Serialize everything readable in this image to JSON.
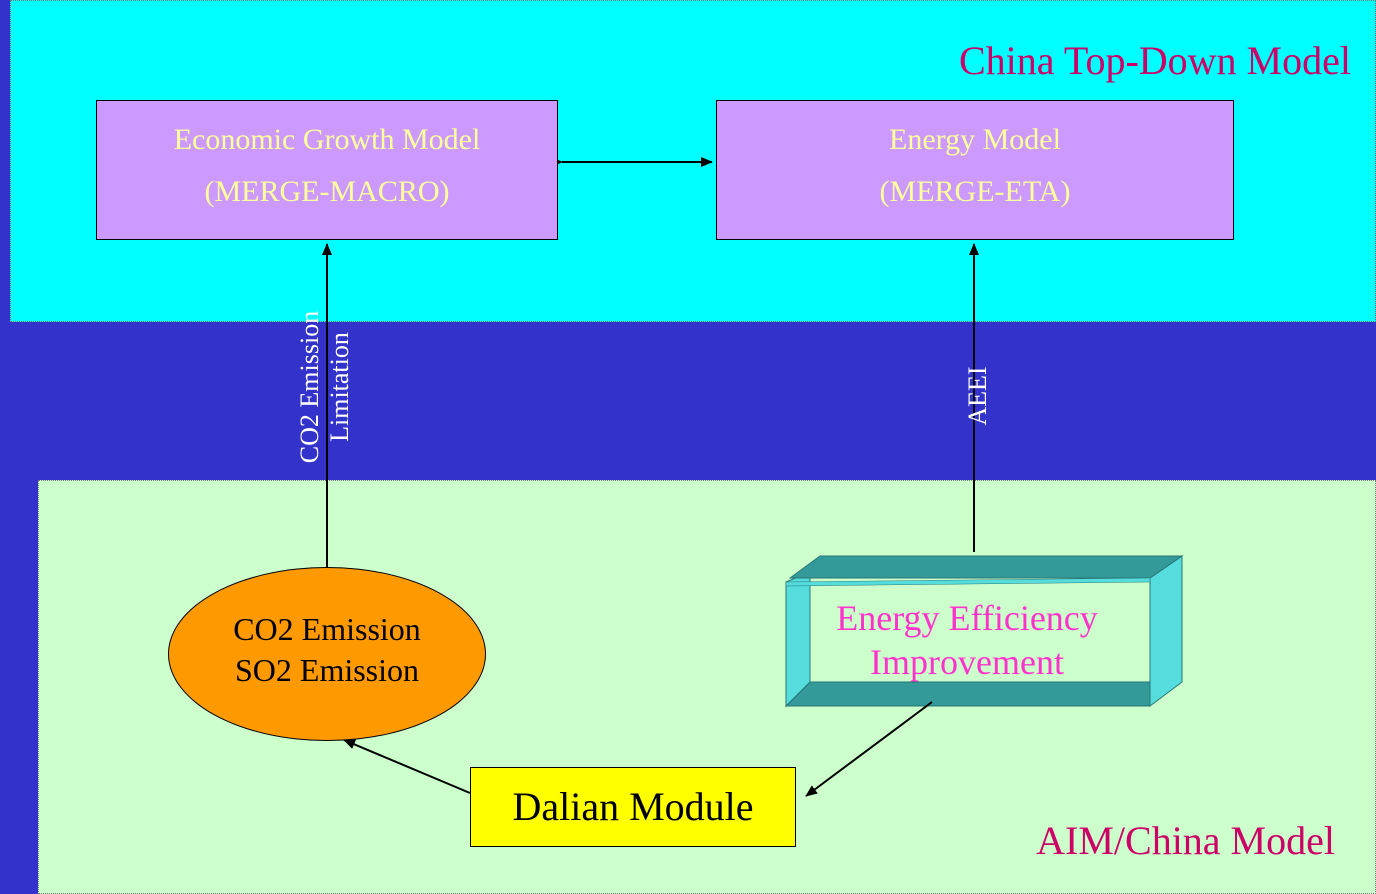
{
  "top_region": {
    "label": "China Top-Down Model",
    "color": "#00ffff"
  },
  "bottom_region": {
    "label": "AIM/China Model",
    "color": "#ccffcc"
  },
  "background_color": "#3333cc",
  "nodes": {
    "econ": {
      "line1": "Economic Growth Model",
      "line2": "(MERGE-MACRO)"
    },
    "energy": {
      "line1": "Energy Model",
      "line2": "(MERGE-ETA)"
    },
    "emission": {
      "line1": "CO2 Emission",
      "line2": "SO2 Emission"
    },
    "efficiency": {
      "line1": "Energy Efficiency",
      "line2": "Improvement"
    },
    "dalian": {
      "label": "Dalian Module"
    }
  },
  "edge_labels": {
    "co2_limit_line1": "CO2 Emission",
    "co2_limit_line2": "Limitation",
    "aeei": "AEEI"
  }
}
